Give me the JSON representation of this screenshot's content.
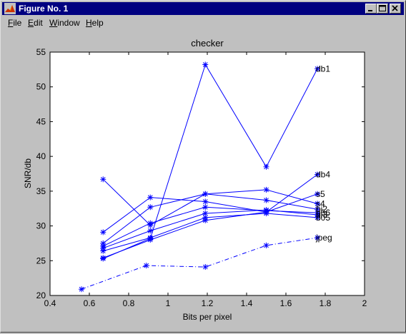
{
  "window": {
    "title": "Figure No. 1"
  },
  "menu": [
    {
      "accel": "F",
      "rest": "ile"
    },
    {
      "accel": "E",
      "rest": "dit"
    },
    {
      "accel": "W",
      "rest": "indow"
    },
    {
      "accel": "H",
      "rest": "elp"
    }
  ],
  "icons": {
    "app": "matlab-logo-icon",
    "minimize": "minimize-icon",
    "maximize": "maximize-icon",
    "close": "close-icon"
  },
  "colors": {
    "titlebar": "#000080",
    "plot_line": "#0000ff",
    "axes_bg": "#ffffff",
    "figure_bg": "#c0c0c0"
  },
  "chart_data": {
    "type": "line",
    "title": "checker",
    "xlabel": "Bits per pixel",
    "ylabel": "SNR/db",
    "xlim": [
      0.4,
      2
    ],
    "ylim": [
      20,
      55
    ],
    "xticks": [
      "0.4",
      "0.6",
      "0.8",
      "1",
      "1.2",
      "1.4",
      "1.6",
      "1.8",
      "2"
    ],
    "yticks": [
      "20",
      "25",
      "30",
      "35",
      "40",
      "45",
      "50",
      "55"
    ],
    "grid": false,
    "marker": "*",
    "series": [
      {
        "name": "db1",
        "x": [
          0.67,
          0.91,
          1.19,
          1.5,
          1.76
        ],
        "y": [
          25.3,
          28.2,
          53.2,
          38.5,
          52.6
        ]
      },
      {
        "name": "db4",
        "x": [
          0.67,
          0.91,
          1.19,
          1.5,
          1.76
        ],
        "y": [
          25.4,
          28.0,
          30.8,
          32.0,
          37.4
        ]
      },
      {
        "name": "s5",
        "x": [
          0.67,
          0.91,
          1.19,
          1.5,
          1.76
        ],
        "y": [
          29.1,
          34.1,
          33.5,
          32.0,
          34.6
        ]
      },
      {
        "name": "s4",
        "x": [
          0.67,
          0.91,
          1.19,
          1.5,
          1.76
        ],
        "y": [
          36.7,
          30.1,
          34.6,
          35.2,
          33.2
        ]
      },
      {
        "name": "bi2",
        "x": [
          0.67,
          0.91,
          1.19,
          1.5,
          1.76
        ],
        "y": [
          27.5,
          32.7,
          34.6,
          33.7,
          32.4
        ]
      },
      {
        "name": "b66",
        "x": [
          0.67,
          0.91,
          1.19,
          1.5,
          1.76
        ],
        "y": [
          27.1,
          30.4,
          32.7,
          32.2,
          31.9
        ]
      },
      {
        "name": "bi3",
        "x": [
          0.67,
          0.91,
          1.19,
          1.5,
          1.76
        ],
        "y": [
          26.8,
          29.3,
          31.8,
          32.3,
          31.6
        ]
      },
      {
        "name": "b05",
        "x": [
          0.67,
          0.91,
          1.19,
          1.5,
          1.76
        ],
        "y": [
          26.4,
          28.3,
          31.2,
          31.8,
          31.2
        ]
      },
      {
        "name": "jpeg",
        "style": "dashdot",
        "x": [
          0.56,
          0.89,
          1.19,
          1.5,
          1.76
        ],
        "y": [
          20.9,
          24.3,
          24.1,
          27.2,
          28.3
        ]
      }
    ]
  }
}
